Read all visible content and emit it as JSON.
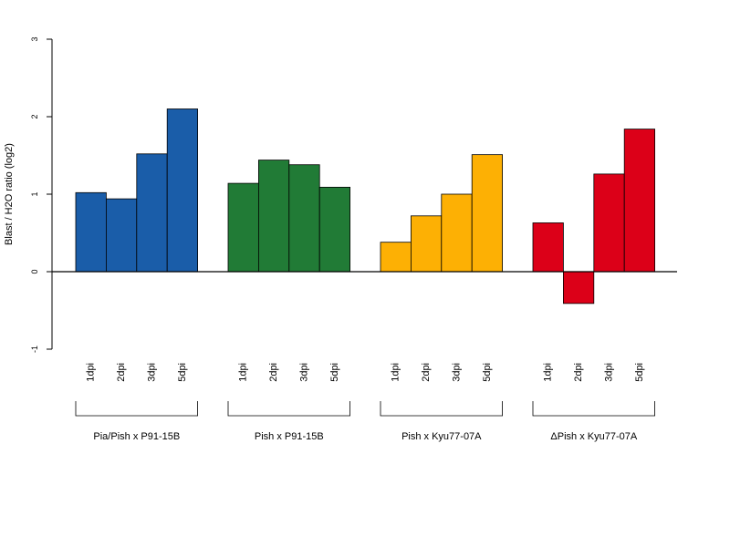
{
  "chart_data": {
    "type": "bar",
    "ylabel": "Blast / H2O ratio (log2)",
    "ylim": [
      -1,
      3
    ],
    "yticks": [
      -1,
      0,
      1,
      2,
      3
    ],
    "grid": false,
    "groups": [
      {
        "name": "Pia/Pish x P91-15B",
        "color": "#1a5da9",
        "categories": [
          "1dpi",
          "2dpi",
          "3dpi",
          "5dpi"
        ],
        "values": [
          1.02,
          0.94,
          1.52,
          2.1
        ]
      },
      {
        "name": "Pish x P91-15B",
        "color": "#217b36",
        "categories": [
          "1dpi",
          "2dpi",
          "3dpi",
          "5dpi"
        ],
        "values": [
          1.14,
          1.44,
          1.38,
          1.09
        ]
      },
      {
        "name": "Pish x Kyu77-07A",
        "color": "#fdb004",
        "categories": [
          "1dpi",
          "2dpi",
          "3dpi",
          "5dpi"
        ],
        "values": [
          0.38,
          0.72,
          1.0,
          1.51
        ]
      },
      {
        "name": "ΔPish x Kyu77-07A",
        "color": "#dc0018",
        "categories": [
          "1dpi",
          "2dpi",
          "3dpi",
          "5dpi"
        ],
        "values": [
          0.63,
          -0.41,
          1.26,
          1.84
        ]
      }
    ]
  }
}
